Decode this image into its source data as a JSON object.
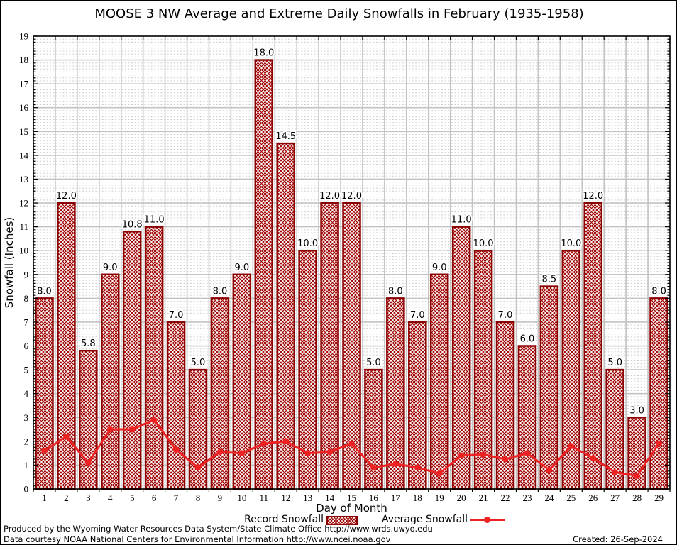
{
  "chart_data": {
    "type": "bar",
    "title": "MOOSE 3 NW Average and Extreme Daily Snowfalls in February (1935-1958)",
    "xlabel": "Day of Month",
    "ylabel": "Snowfall (Inches)",
    "ylim": [
      0,
      19
    ],
    "ytick_step": 1,
    "grid": true,
    "legend_position": "bottom",
    "categories": [
      1,
      2,
      3,
      4,
      5,
      6,
      7,
      8,
      9,
      10,
      11,
      12,
      13,
      14,
      15,
      16,
      17,
      18,
      19,
      20,
      21,
      22,
      23,
      24,
      25,
      26,
      27,
      28,
      29
    ],
    "series": [
      {
        "name": "Record Snowfall",
        "type": "bar",
        "values": [
          8.0,
          12.0,
          5.8,
          9.0,
          10.8,
          11.0,
          7.0,
          5.0,
          8.0,
          9.0,
          18.0,
          14.5,
          10.0,
          12.0,
          12.0,
          5.0,
          8.0,
          7.0,
          9.0,
          11.0,
          10.0,
          7.0,
          6.0,
          8.5,
          10.0,
          12.0,
          5.0,
          3.0,
          8.0
        ],
        "data_labels": [
          "8.0",
          "12.0",
          "5.8",
          "9.0",
          "10.8",
          "11.0",
          "7.0",
          "5.0",
          "8.0",
          "9.0",
          "18.0",
          "14.5",
          "10.0",
          "12.0",
          "12.0",
          "5.0",
          "8.0",
          "7.0",
          "9.0",
          "11.0",
          "10.0",
          "7.0",
          "6.0",
          "8.5",
          "10.0",
          "12.0",
          "5.0",
          "3.0",
          "8.0"
        ]
      },
      {
        "name": "Average Snowfall",
        "type": "line",
        "values": [
          1.6,
          2.2,
          1.1,
          2.5,
          2.5,
          2.9,
          1.65,
          0.9,
          1.55,
          1.5,
          1.9,
          2.0,
          1.5,
          1.55,
          1.9,
          0.9,
          1.05,
          0.9,
          0.65,
          1.4,
          1.45,
          1.25,
          1.5,
          0.8,
          1.8,
          1.3,
          0.7,
          0.55,
          1.9
        ]
      }
    ],
    "colors": {
      "bar_border": "#8b0000",
      "bar_hatch": "#a00000",
      "line": "#ee2222",
      "grid_major": "#c3c3c3",
      "grid_minor": "#cccccc",
      "axis": "#000000",
      "text": "#000000"
    }
  },
  "legend": {
    "record_label": "Record Snowfall",
    "average_label": "Average Snowfall"
  },
  "footer": {
    "line1": "Produced by the Wyoming Water Resources Data System/State Climate Office http://www.wrds.uwyo.edu",
    "line2": "Data courtesy NOAA National Centers for Environmental Information http://www.ncei.noaa.gov",
    "created": "Created: 26-Sep-2024"
  }
}
